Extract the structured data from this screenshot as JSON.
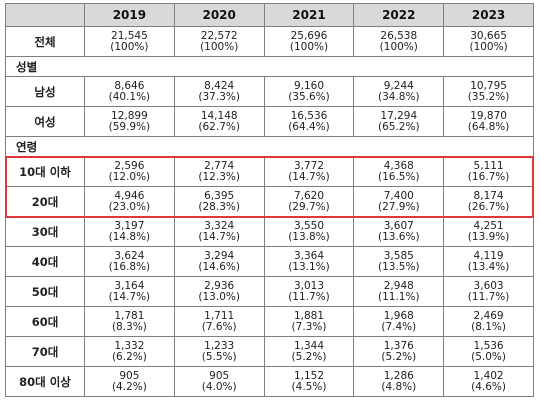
{
  "table": {
    "corner": "",
    "years": [
      "2019",
      "2020",
      "2021",
      "2022",
      "2023"
    ],
    "total": {
      "label": "전체",
      "cells": [
        {
          "n": "21,545",
          "p": "(100%)"
        },
        {
          "n": "22,572",
          "p": "(100%)"
        },
        {
          "n": "25,696",
          "p": "(100%)"
        },
        {
          "n": "26,538",
          "p": "(100%)"
        },
        {
          "n": "30,665",
          "p": "(100%)"
        }
      ]
    },
    "sections": [
      {
        "title": "성별",
        "rows": [
          {
            "label": "남성",
            "cells": [
              {
                "n": "8,646",
                "p": "(40.1%)"
              },
              {
                "n": "8,424",
                "p": "(37.3%)"
              },
              {
                "n": "9,160",
                "p": "(35.6%)"
              },
              {
                "n": "9,244",
                "p": "(34.8%)"
              },
              {
                "n": "10,795",
                "p": "(35.2%)"
              }
            ]
          },
          {
            "label": "여성",
            "cells": [
              {
                "n": "12,899",
                "p": "(59.9%)"
              },
              {
                "n": "14,148",
                "p": "(62.7%)"
              },
              {
                "n": "16,536",
                "p": "(64.4%)"
              },
              {
                "n": "17,294",
                "p": "(65.2%)"
              },
              {
                "n": "19,870",
                "p": "(64.8%)"
              }
            ]
          }
        ]
      },
      {
        "title": "연령",
        "rows": [
          {
            "label": "10대 이하",
            "highlight": true,
            "cells": [
              {
                "n": "2,596",
                "p": "(12.0%)"
              },
              {
                "n": "2,774",
                "p": "(12.3%)"
              },
              {
                "n": "3,772",
                "p": "(14.7%)"
              },
              {
                "n": "4,368",
                "p": "(16.5%)"
              },
              {
                "n": "5,111",
                "p": "(16.7%)"
              }
            ]
          },
          {
            "label": "20대",
            "highlight": true,
            "cells": [
              {
                "n": "4,946",
                "p": "(23.0%)"
              },
              {
                "n": "6,395",
                "p": "(28.3%)"
              },
              {
                "n": "7,620",
                "p": "(29.7%)"
              },
              {
                "n": "7,400",
                "p": "(27.9%)"
              },
              {
                "n": "8,174",
                "p": "(26.7%)"
              }
            ]
          },
          {
            "label": "30대",
            "cells": [
              {
                "n": "3,197",
                "p": "(14.8%)"
              },
              {
                "n": "3,324",
                "p": "(14.7%)"
              },
              {
                "n": "3,550",
                "p": "(13.8%)"
              },
              {
                "n": "3,607",
                "p": "(13.6%)"
              },
              {
                "n": "4,251",
                "p": "(13.9%)"
              }
            ]
          },
          {
            "label": "40대",
            "cells": [
              {
                "n": "3,624",
                "p": "(16.8%)"
              },
              {
                "n": "3,294",
                "p": "(14.6%)"
              },
              {
                "n": "3,364",
                "p": "(13.1%)"
              },
              {
                "n": "3,585",
                "p": "(13.5%)"
              },
              {
                "n": "4,119",
                "p": "(13.4%)"
              }
            ]
          },
          {
            "label": "50대",
            "cells": [
              {
                "n": "3,164",
                "p": "(14.7%)"
              },
              {
                "n": "2,936",
                "p": "(13.0%)"
              },
              {
                "n": "3,013",
                "p": "(11.7%)"
              },
              {
                "n": "2,948",
                "p": "(11.1%)"
              },
              {
                "n": "3,603",
                "p": "(11.7%)"
              }
            ]
          },
          {
            "label": "60대",
            "cells": [
              {
                "n": "1,781",
                "p": "(8.3%)"
              },
              {
                "n": "1,711",
                "p": "(7.6%)"
              },
              {
                "n": "1,881",
                "p": "(7.3%)"
              },
              {
                "n": "1,968",
                "p": "(7.4%)"
              },
              {
                "n": "2,469",
                "p": "(8.1%)"
              }
            ]
          },
          {
            "label": "70대",
            "cells": [
              {
                "n": "1,332",
                "p": "(6.2%)"
              },
              {
                "n": "1,233",
                "p": "(5.5%)"
              },
              {
                "n": "1,344",
                "p": "(5.2%)"
              },
              {
                "n": "1,376",
                "p": "(5.2%)"
              },
              {
                "n": "1,536",
                "p": "(5.0%)"
              }
            ]
          },
          {
            "label": "80대 이상",
            "cells": [
              {
                "n": "905",
                "p": "(4.2%)"
              },
              {
                "n": "905",
                "p": "(4.0%)"
              },
              {
                "n": "1,152",
                "p": "(4.5%)"
              },
              {
                "n": "1,286",
                "p": "(4.8%)"
              },
              {
                "n": "1,402",
                "p": "(4.6%)"
              }
            ]
          }
        ]
      }
    ],
    "highlight_color": "#e03838",
    "header_bg": "#d9d9d9"
  }
}
